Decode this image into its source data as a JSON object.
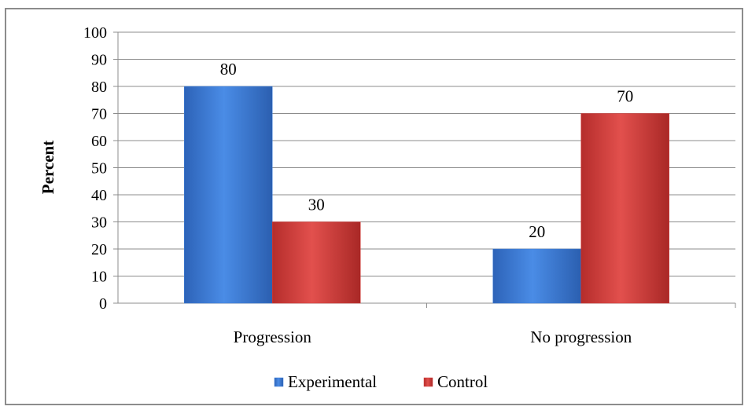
{
  "chart_data": {
    "type": "bar",
    "title": "",
    "xlabel": "",
    "ylabel": "Percent",
    "ylim": [
      0,
      100
    ],
    "yticks": [
      0,
      10,
      20,
      30,
      40,
      50,
      60,
      70,
      80,
      90,
      100
    ],
    "categories": [
      "Progression",
      "No progression"
    ],
    "series": [
      {
        "name": "Experimental",
        "values": [
          80,
          20
        ],
        "color": "#3f7fd8"
      },
      {
        "name": "Control",
        "values": [
          30,
          70
        ],
        "color": "#d63c3a"
      }
    ],
    "grid": true,
    "legend": "bottom",
    "data_labels": true
  }
}
